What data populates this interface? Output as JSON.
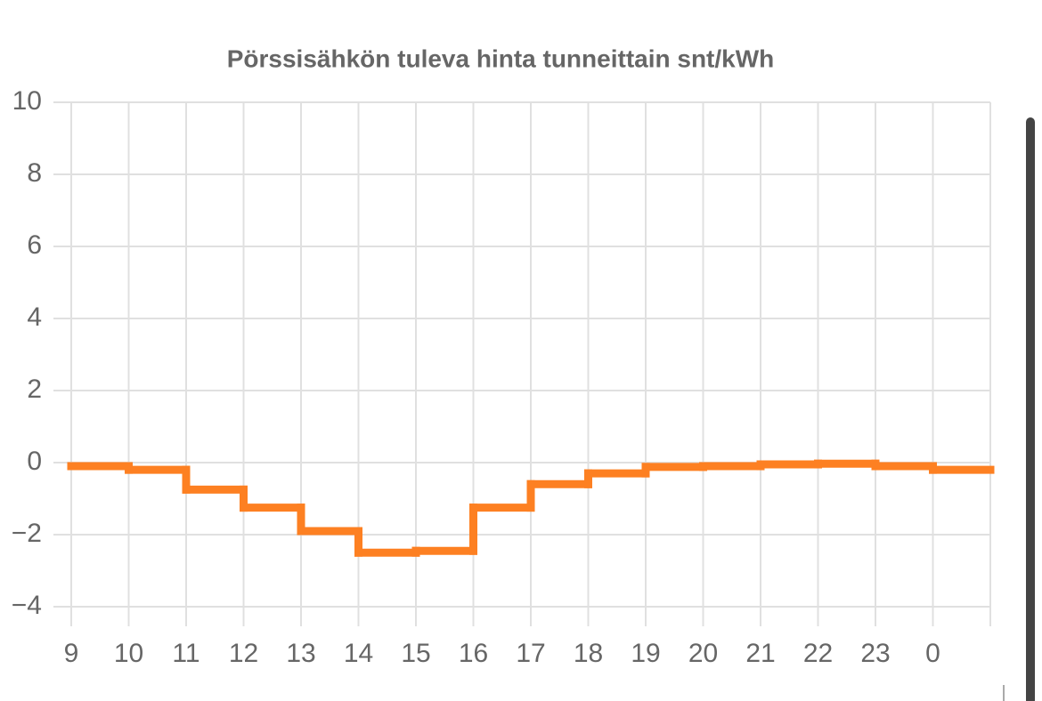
{
  "chart_data": {
    "type": "line",
    "step": true,
    "title": "Pörssisähkön tuleva hinta tunneittain snt/kWh",
    "x": [
      9,
      10,
      11,
      12,
      13,
      14,
      15,
      16,
      17,
      18,
      19,
      20,
      21,
      22,
      23,
      24
    ],
    "series": [
      {
        "color": "#fd8022",
        "values": [
          -0.1,
          -0.2,
          -0.75,
          -1.25,
          -1.9,
          -2.5,
          -2.45,
          -1.25,
          -0.6,
          -0.3,
          -0.12,
          -0.1,
          -0.05,
          -0.03,
          -0.1,
          -0.2
        ]
      }
    ],
    "xlim": [
      9,
      25
    ],
    "xticks": [
      9,
      10,
      11,
      12,
      13,
      14,
      15,
      16,
      17,
      18,
      19,
      20,
      21,
      22,
      23,
      {
        "value": 24,
        "label": "0"
      }
    ],
    "ylim": [
      -4,
      10
    ],
    "yticks": [
      {
        "value": -4,
        "label": "−4"
      },
      {
        "value": -2,
        "label": "−2"
      },
      0,
      2,
      4,
      6,
      8,
      10
    ],
    "grid": true
  }
}
